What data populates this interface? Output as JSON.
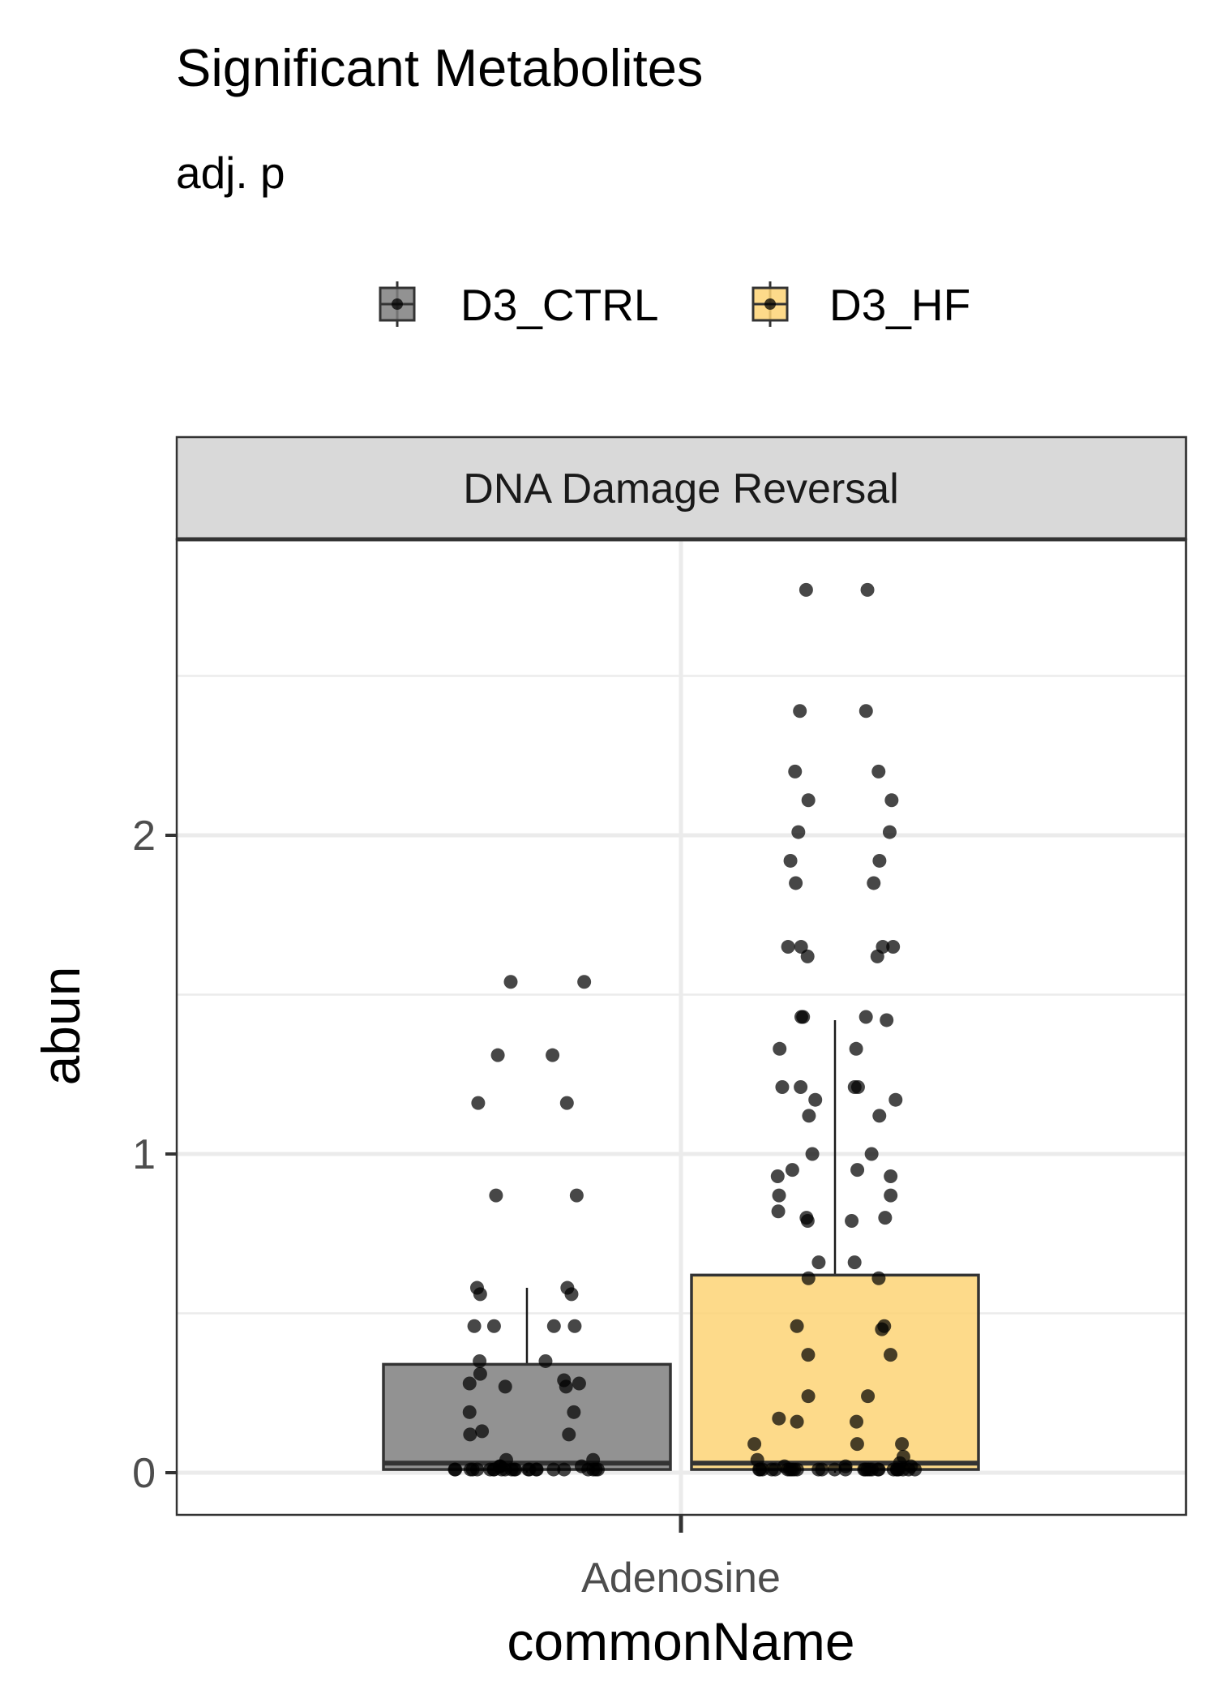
{
  "chart_data": {
    "type": "boxplot",
    "title": "Significant Metabolites",
    "subtitle": "adj. p",
    "facet_label": "DNA Damage Reversal",
    "xlabel": "commonName",
    "ylabel": "abun",
    "categories": [
      "Adenosine"
    ],
    "y_ticks": [
      0,
      1,
      2
    ],
    "y_tick_labels": [
      "0",
      "1",
      "2"
    ],
    "ylim": [
      -0.1,
      2.9
    ],
    "grid": true,
    "legend_position": "top",
    "series": [
      {
        "name": "D3_CTRL",
        "color": "#7f7f7f",
        "box": {
          "q1": 0.01,
          "median": 0.03,
          "q3": 0.34,
          "whisker_low": 0.0,
          "whisker_high": 0.58
        },
        "points": [
          1.54,
          1.54,
          1.31,
          1.31,
          1.16,
          1.16,
          0.87,
          0.87,
          0.58,
          0.58,
          0.56,
          0.56,
          0.46,
          0.46,
          0.46,
          0.46,
          0.35,
          0.35,
          0.31,
          0.29,
          0.28,
          0.28,
          0.27,
          0.27,
          0.19,
          0.19,
          0.13,
          0.12,
          0.12,
          0.04,
          0.04,
          0.02,
          0.02,
          0.02,
          0.01,
          0.01,
          0.01,
          0.01,
          0.01,
          0.01,
          0.01,
          0.01,
          0.01,
          0.01,
          0.01,
          0.01,
          0.01,
          0.01,
          0.01,
          0.01,
          0.01,
          0.01,
          0.01,
          0.01,
          0.01,
          0.01,
          0.01
        ]
      },
      {
        "name": "D3_HF",
        "color": "#fdd475",
        "box": {
          "q1": 0.01,
          "median": 0.03,
          "q3": 0.62,
          "whisker_low": 0.0,
          "whisker_high": 1.42
        },
        "points": [
          2.77,
          2.77,
          2.39,
          2.39,
          2.2,
          2.2,
          2.11,
          2.11,
          2.01,
          2.01,
          1.92,
          1.92,
          1.85,
          1.85,
          1.65,
          1.65,
          1.65,
          1.65,
          1.62,
          1.62,
          1.43,
          1.43,
          1.43,
          1.42,
          1.33,
          1.33,
          1.21,
          1.21,
          1.21,
          1.21,
          1.17,
          1.17,
          1.12,
          1.12,
          1.0,
          1.0,
          0.95,
          0.95,
          0.93,
          0.93,
          0.87,
          0.87,
          0.82,
          0.8,
          0.8,
          0.79,
          0.79,
          0.66,
          0.66,
          0.61,
          0.61,
          0.46,
          0.46,
          0.45,
          0.37,
          0.37,
          0.24,
          0.24,
          0.17,
          0.16,
          0.16,
          0.09,
          0.09,
          0.09,
          0.05,
          0.04,
          0.03,
          0.02,
          0.02,
          0.02,
          0.01,
          0.01,
          0.01,
          0.01,
          0.01,
          0.01,
          0.01,
          0.01,
          0.01,
          0.01,
          0.01,
          0.01,
          0.01,
          0.01,
          0.01,
          0.01,
          0.01,
          0.01,
          0.01,
          0.01,
          0.01,
          0.01,
          0.01,
          0.01,
          0.01,
          0.01,
          0.01,
          0.01
        ]
      }
    ]
  }
}
